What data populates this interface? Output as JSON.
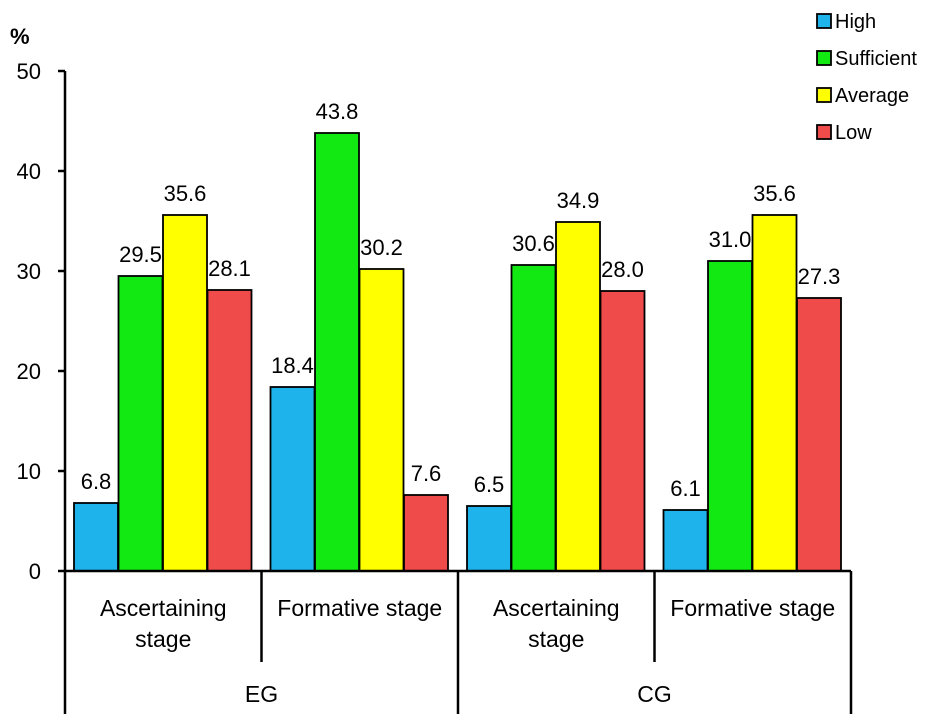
{
  "chart_data": {
    "type": "bar",
    "y_unit_label": "%",
    "ylim": [
      0,
      50
    ],
    "yticks": [
      0,
      10,
      20,
      30,
      40,
      50
    ],
    "grid": false,
    "legend_position": "top-right",
    "groups": [
      {
        "name": "EG",
        "categories": [
          "Ascertaining stage",
          "Formative stage"
        ]
      },
      {
        "name": "CG",
        "categories": [
          "Ascertaining stage",
          "Formative stage"
        ]
      }
    ],
    "category_lines": {
      "Ascertaining stage": [
        "Ascertaining",
        "stage"
      ],
      "Formative stage": [
        "Formative stage"
      ]
    },
    "series": [
      {
        "name": "High",
        "color": "#1EB4EB",
        "values": [
          6.8,
          18.4,
          6.5,
          6.1
        ],
        "labels": [
          "6.8",
          "18.4",
          "6.5",
          "6.1"
        ]
      },
      {
        "name": "Sufficient",
        "color": "#12E812",
        "values": [
          29.5,
          43.8,
          30.6,
          31.0
        ],
        "labels": [
          "29.5",
          "43.8",
          "30.6",
          "31.0"
        ]
      },
      {
        "name": "Average",
        "color": "#FFFF00",
        "values": [
          35.6,
          30.2,
          34.9,
          35.6
        ],
        "labels": [
          "35.6",
          "30.2",
          "34.9",
          "35.6"
        ]
      },
      {
        "name": "Low",
        "color": "#F04B4B",
        "values": [
          28.1,
          7.6,
          28.0,
          27.3
        ],
        "labels": [
          "28.1",
          "7.6",
          "28.0",
          "27.3"
        ]
      }
    ]
  }
}
